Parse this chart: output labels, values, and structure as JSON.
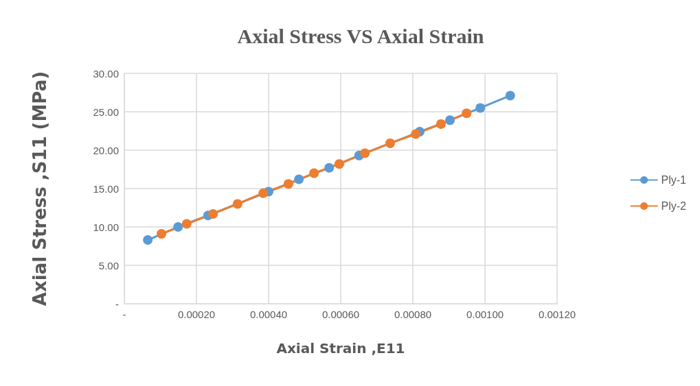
{
  "chart_data": {
    "type": "line",
    "title": "Axial Stress VS Axial Strain",
    "xlabel": "Axial Strain ,E11",
    "ylabel": "Axial Stress ,S11 (MPa)",
    "series": [
      {
        "name": "Ply-1",
        "color": "#5b9bd5",
        "x": [
          6.5e-05,
          0.000149,
          0.000232,
          0.000316,
          0.0004,
          0.000484,
          0.000568,
          0.000651,
          0.000735,
          0.000819,
          0.000903,
          0.000987,
          0.00107
        ],
        "values": [
          8.3,
          10.0,
          11.5,
          null,
          14.6,
          16.2,
          17.7,
          19.3,
          null,
          22.4,
          23.9,
          25.5,
          27.1
        ]
      },
      {
        "name": "Ply-2",
        "color": "#ed7d31",
        "x": [
          0.000103,
          0.000173,
          0.000246,
          0.000314,
          0.000385,
          0.000455,
          0.000526,
          0.000596,
          0.000667,
          0.000737,
          0.000808,
          0.000878,
          0.000949
        ],
        "values": [
          9.1,
          10.4,
          11.7,
          13.0,
          14.4,
          15.6,
          17.0,
          18.2,
          19.6,
          20.9,
          22.1,
          23.4,
          24.8
        ]
      }
    ],
    "xlim": [
      0,
      0.0012
    ],
    "xticks": [
      {
        "value": 0,
        "label": "-"
      },
      {
        "value": 0.0002,
        "label": "0.00020"
      },
      {
        "value": 0.0004,
        "label": "0.00040"
      },
      {
        "value": 0.0006,
        "label": "0.00060"
      },
      {
        "value": 0.0008,
        "label": "0.00080"
      },
      {
        "value": 0.001,
        "label": "0.00100"
      },
      {
        "value": 0.0012,
        "label": "0.00120"
      }
    ],
    "ylim": [
      0,
      30
    ],
    "yticks": [
      {
        "value": 0,
        "label": "-"
      },
      {
        "value": 5,
        "label": "5.00"
      },
      {
        "value": 10,
        "label": "10.00"
      },
      {
        "value": 15,
        "label": "15.00"
      },
      {
        "value": 20,
        "label": "20.00"
      },
      {
        "value": 25,
        "label": "25.00"
      },
      {
        "value": 30,
        "label": "30.00"
      }
    ],
    "grid": true,
    "legend": "right",
    "marker": "circle",
    "line_style": "solid"
  }
}
